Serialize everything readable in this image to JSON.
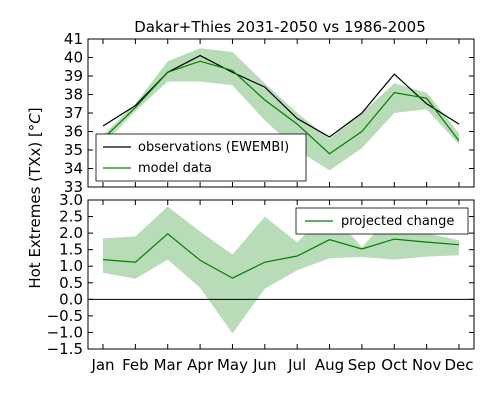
{
  "figure": {
    "title": "Dakar+Thies 2031-2050 vs 1986-2005",
    "ylabel": "Hot Extremes (TXx) [$^\\circ C$]",
    "ylabel_main": "Hot Extremes (TXx) [",
    "ylabel_unit": "°C",
    "ylabel_end": "]"
  },
  "colors": {
    "observations": "#000000",
    "model": "#008000",
    "band": "#b7dcb7",
    "zero_line": "#000000"
  },
  "chart_data": [
    {
      "type": "line",
      "title": "Dakar+Thies 2031-2050 vs 1986-2005",
      "categories": [
        "Jan",
        "Feb",
        "Mar",
        "Apr",
        "May",
        "Jun",
        "Jul",
        "Aug",
        "Sep",
        "Oct",
        "Nov",
        "Dec"
      ],
      "ylim": [
        33,
        41
      ],
      "yticks": [
        "33",
        "34",
        "35",
        "36",
        "37",
        "38",
        "39",
        "40",
        "41"
      ],
      "grid": false,
      "legend_position": "lower-left",
      "series": [
        {
          "name": "observations (EWEMBI)",
          "values": [
            36.3,
            37.4,
            39.2,
            40.1,
            39.2,
            38.4,
            36.7,
            35.7,
            37.0,
            39.1,
            37.5,
            36.4
          ]
        },
        {
          "name": "model data",
          "values": [
            35.6,
            37.3,
            39.2,
            39.8,
            39.3,
            37.7,
            36.4,
            34.8,
            36.0,
            38.1,
            37.8,
            35.5
          ],
          "band_lower": [
            35.3,
            37.1,
            38.7,
            38.7,
            38.5,
            36.6,
            35.0,
            33.9,
            35.1,
            37.0,
            37.2,
            35.3
          ],
          "band_upper": [
            35.8,
            37.5,
            39.8,
            40.5,
            40.3,
            38.6,
            37.0,
            35.6,
            37.0,
            38.6,
            38.1,
            35.9
          ]
        }
      ]
    },
    {
      "type": "line",
      "categories": [
        "Jan",
        "Feb",
        "Mar",
        "Apr",
        "May",
        "Jun",
        "Jul",
        "Aug",
        "Sep",
        "Oct",
        "Nov",
        "Dec"
      ],
      "ylim": [
        -1.5,
        3.0
      ],
      "yticks": [
        "3.0",
        "2.5",
        "2.0",
        "1.5",
        "1.0",
        "0.5",
        "0.0",
        "−0.5",
        "−1.0",
        "−1.5"
      ],
      "zero_line": 0.0,
      "grid": false,
      "legend_position": "top-right",
      "series": [
        {
          "name": "projected change",
          "values": [
            1.2,
            1.12,
            1.98,
            1.18,
            0.64,
            1.12,
            1.31,
            1.8,
            1.52,
            1.82,
            1.73,
            1.65
          ],
          "band_lower": [
            0.8,
            0.62,
            1.2,
            0.35,
            -1.03,
            0.32,
            0.88,
            1.24,
            1.28,
            1.2,
            1.29,
            1.33
          ],
          "band_upper": [
            1.84,
            1.9,
            2.8,
            2.05,
            1.35,
            2.5,
            1.72,
            2.68,
            1.57,
            2.66,
            2.0,
            1.78
          ]
        }
      ]
    }
  ]
}
